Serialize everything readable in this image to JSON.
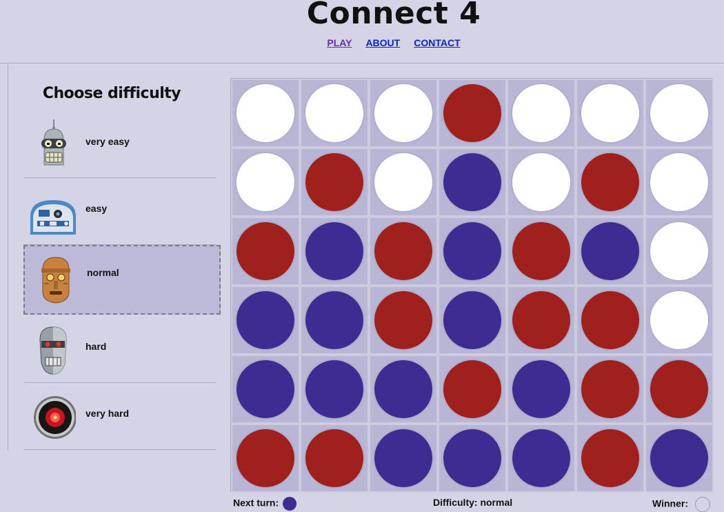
{
  "header": {
    "title": "Connect 4",
    "nav": [
      {
        "label": "PLAY"
      },
      {
        "label": "ABOUT"
      },
      {
        "label": "CONTACT"
      }
    ]
  },
  "sidebar": {
    "title": "Choose difficulty",
    "selected": "normal",
    "items": [
      {
        "label": "very easy",
        "avatar": "bender-robot-icon"
      },
      {
        "label": "easy",
        "avatar": "r2d2-robot-icon"
      },
      {
        "label": "normal",
        "avatar": "c3po-robot-icon"
      },
      {
        "label": "hard",
        "avatar": "terminator-robot-icon"
      },
      {
        "label": "very hard",
        "avatar": "hal9000-eye-icon"
      }
    ]
  },
  "board": {
    "rows": 6,
    "cols": 7,
    "grid": [
      [
        "empty",
        "empty",
        "empty",
        "red",
        "empty",
        "empty",
        "empty"
      ],
      [
        "empty",
        "red",
        "empty",
        "blue",
        "empty",
        "red",
        "empty"
      ],
      [
        "red",
        "blue",
        "red",
        "blue",
        "red",
        "blue",
        "empty"
      ],
      [
        "blue",
        "blue",
        "red",
        "blue",
        "red",
        "red",
        "empty"
      ],
      [
        "blue",
        "blue",
        "blue",
        "red",
        "blue",
        "red",
        "red"
      ],
      [
        "red",
        "red",
        "blue",
        "blue",
        "blue",
        "red",
        "blue"
      ]
    ]
  },
  "colors": {
    "red": "#a0201e",
    "blue": "#3e2c92",
    "empty": "#ffffff",
    "background": "#d5d4e6"
  },
  "status": {
    "next_turn_label": "Next turn:",
    "next_turn_color": "blue",
    "difficulty_text": "Difficulty: normal",
    "winner_label": "Winner:",
    "winner": ""
  }
}
